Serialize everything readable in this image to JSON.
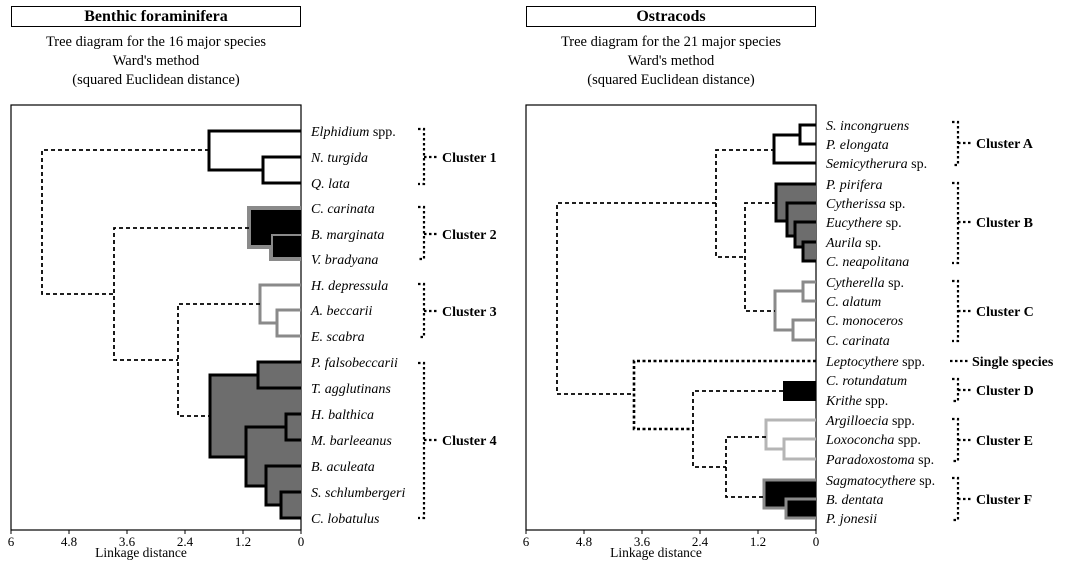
{
  "left_panel": {
    "title": "Benthic foraminifera",
    "subtitle_lines": [
      "Tree diagram for the 16 major species",
      "Ward's method",
      "(squared Euclidean distance)"
    ],
    "axis_label": "Linkage distance",
    "ticks": [
      "6",
      "4.8",
      "3.6",
      "2.4",
      "1.2",
      "0"
    ],
    "species": [
      {
        "name": "Elphidium",
        "suffix": " spp."
      },
      {
        "name": "N. turgida",
        "suffix": ""
      },
      {
        "name": "Q. lata",
        "suffix": ""
      },
      {
        "name": "C. carinata",
        "suffix": ""
      },
      {
        "name": "B. marginata",
        "suffix": ""
      },
      {
        "name": "V. bradyana",
        "suffix": ""
      },
      {
        "name": "H. depressula",
        "suffix": ""
      },
      {
        "name": "A. beccarii",
        "suffix": ""
      },
      {
        "name": "E. scabra",
        "suffix": ""
      },
      {
        "name": "P. falsobeccarii",
        "suffix": ""
      },
      {
        "name": "T. agglutinans",
        "suffix": ""
      },
      {
        "name": "H. balthica",
        "suffix": ""
      },
      {
        "name": "M. barleeanus",
        "suffix": ""
      },
      {
        "name": "B. aculeata",
        "suffix": ""
      },
      {
        "name": "S. schlumbergeri",
        "suffix": ""
      },
      {
        "name": "C. lobatulus",
        "suffix": ""
      }
    ],
    "clusters": [
      "Cluster 1",
      "Cluster 2",
      "Cluster 3",
      "Cluster 4"
    ]
  },
  "right_panel": {
    "title": "Ostracods",
    "subtitle_lines": [
      "Tree diagram for the 21 major species",
      "Ward's method",
      "(squared Euclidean distance)"
    ],
    "axis_label": "Linkage distance",
    "ticks": [
      "6",
      "4.8",
      "3.6",
      "2.4",
      "1.2",
      "0"
    ],
    "species": [
      {
        "name": "S. incongruens",
        "suffix": ""
      },
      {
        "name": "P. elongata",
        "suffix": ""
      },
      {
        "name": "Semicytherura",
        "suffix": " sp."
      },
      {
        "name": "P. pirifera",
        "suffix": ""
      },
      {
        "name": "Cytherissa",
        "suffix": " sp."
      },
      {
        "name": "Eucythere",
        "suffix": " sp."
      },
      {
        "name": "Aurila",
        "suffix": " sp."
      },
      {
        "name": "C. neapolitana",
        "suffix": ""
      },
      {
        "name": "Cytherella",
        "suffix": " sp."
      },
      {
        "name": "C. alatum",
        "suffix": ""
      },
      {
        "name": "C. monoceros",
        "suffix": ""
      },
      {
        "name": "C. carinata",
        "suffix": ""
      },
      {
        "name": "Leptocythere",
        "suffix": " spp."
      },
      {
        "name": "C. rotundatum",
        "suffix": ""
      },
      {
        "name": "Krithe",
        "suffix": " spp."
      },
      {
        "name": "Argilloecia",
        "suffix": " spp."
      },
      {
        "name": "Loxoconcha",
        "suffix": " spp."
      },
      {
        "name": "Paradoxostoma",
        "suffix": " sp."
      },
      {
        "name": "Sagmatocythere",
        "suffix": " sp."
      },
      {
        "name": "B. dentata",
        "suffix": ""
      },
      {
        "name": "P. jonesii",
        "suffix": ""
      }
    ],
    "clusters": [
      "Cluster A",
      "Cluster B",
      "Cluster C",
      "Single species",
      "Cluster D",
      "Cluster E",
      "Cluster F"
    ]
  },
  "colors": {
    "dark_gray": "#6d6d6d",
    "light_gray": "#8a8a8a",
    "pale_gray": "#b5b5b5",
    "black": "#000000"
  }
}
